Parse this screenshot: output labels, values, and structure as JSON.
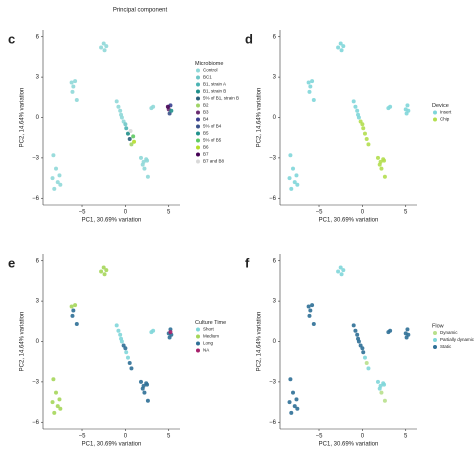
{
  "header": {
    "text": "Principal component"
  },
  "chart_data": [
    {
      "type": "scatter",
      "panel_label": "c",
      "x_label": "PC1, 30.69% variation",
      "y_label": "PC2, 14.64% variation",
      "legend_title": "Microbiome",
      "xlim": [
        -9.5,
        6.3
      ],
      "ylim": [
        -6.5,
        6.5
      ],
      "xticks": [
        {
          "value": -5,
          "label": "−5"
        },
        0,
        5
      ],
      "yticks": [
        6,
        3,
        0,
        {
          "value": -3,
          "label": "−3"
        },
        {
          "value": -6,
          "label": "−6"
        }
      ],
      "series": [
        {
          "name": "Control",
          "color": "#8fd8d8",
          "x": [
            -2.8,
            -2.5,
            -2.2,
            -2.4,
            -6.2,
            -6.0,
            -5.8,
            -6.1,
            -5.6,
            -8.3,
            -8.0,
            -8.4,
            -7.8,
            -8.2,
            -7.5,
            -7.6,
            -1,
            -0.8,
            -0.6,
            -0.5,
            -0.4,
            -0.2,
            1.8,
            2.1,
            2.4,
            2.2,
            2.6,
            2.0,
            2.5,
            3.0,
            3.2
          ],
          "y": [
            5.2,
            5.5,
            5.3,
            5.0,
            2.6,
            2.3,
            2.7,
            1.9,
            1.3,
            -2.8,
            -3.8,
            -4.5,
            -4.8,
            -5.3,
            -5.0,
            -4.3,
            1.2,
            0.8,
            0.5,
            0.2,
            0,
            -0.3,
            -3,
            -3.3,
            -3.1,
            -3.8,
            -4.4,
            -3.5,
            -3.2,
            0.7,
            0.8
          ]
        },
        {
          "name": "BC1",
          "color": "#6ec6c6",
          "x": [
            0
          ],
          "y": [
            -0.5
          ]
        },
        {
          "name": "B1, strain A",
          "color": "#4bb3b3",
          "x": [
            0.1
          ],
          "y": [
            -0.8
          ]
        },
        {
          "name": "B1, strain B",
          "color": "#1f8f8a",
          "x": [
            0.3
          ],
          "y": [
            -1.2
          ]
        },
        {
          "name": "5% of B1, strain B",
          "color": "#2c5f7a",
          "x": [
            0.5
          ],
          "y": [
            -1.6
          ]
        },
        {
          "name": "B2",
          "color": "#a0d468",
          "x": [
            0.7
          ],
          "y": [
            -2
          ]
        },
        {
          "name": "B3",
          "color": "#6a2c70",
          "x": [
            5.0
          ],
          "y": [
            0.6
          ]
        },
        {
          "name": "B4",
          "color": "#3a3f8f",
          "x": [
            5.2
          ],
          "y": [
            0.9
          ]
        },
        {
          "name": "5% of B4",
          "color": "#3b528b",
          "x": [
            5.1
          ],
          "y": [
            0.3
          ]
        },
        {
          "name": "B5",
          "color": "#21918c",
          "x": [
            5.3
          ],
          "y": [
            0.5
          ]
        },
        {
          "name": "5% of B5",
          "color": "#5ec962",
          "x": [
            0.9
          ],
          "y": [
            -1.4
          ]
        },
        {
          "name": "B6",
          "color": "#b5de2b",
          "x": [
            1.0
          ],
          "y": [
            -1.8
          ]
        },
        {
          "name": "B7",
          "color": "#440154",
          "x": [
            4.9
          ],
          "y": [
            0.8
          ]
        },
        {
          "name": "B7 and B8",
          "color": "#d9d9d9",
          "x": [
            0.6
          ],
          "y": [
            -1.0
          ]
        }
      ]
    },
    {
      "type": "scatter",
      "panel_label": "d",
      "x_label": "PC1, 30.69% variation",
      "y_label": "PC2, 14.64% variation",
      "legend_title": "Device",
      "xlim": [
        -9.5,
        6.3
      ],
      "ylim": [
        -6.5,
        6.5
      ],
      "xticks": [
        {
          "value": -5,
          "label": "−5"
        },
        0,
        5
      ],
      "yticks": [
        6,
        3,
        0,
        {
          "value": -3,
          "label": "−3"
        },
        {
          "value": -6,
          "label": "−6"
        }
      ],
      "series": [
        {
          "name": "Insert",
          "color": "#7fd6d9",
          "x": [
            -2.8,
            -2.5,
            -2.2,
            -2.4,
            -6.2,
            -6.0,
            -5.8,
            -6.1,
            -5.6,
            -8.3,
            -8.0,
            -8.4,
            -7.8,
            -8.2,
            -7.5,
            -7.6,
            -1,
            -0.8,
            -0.6,
            -0.5,
            -0.4,
            3.0,
            3.2,
            5.0,
            5.2,
            5.1,
            5.3
          ],
          "y": [
            5.2,
            5.5,
            5.3,
            5.0,
            2.6,
            2.3,
            2.7,
            1.9,
            1.3,
            -2.8,
            -3.8,
            -4.5,
            -4.8,
            -5.3,
            -5.0,
            -4.3,
            1.2,
            0.8,
            0.5,
            0.2,
            0,
            0.7,
            0.8,
            0.6,
            0.9,
            0.3,
            0.5
          ]
        },
        {
          "name": "Chip",
          "color": "#b3de4f",
          "x": [
            -0.2,
            0,
            0.1,
            0.3,
            0.5,
            0.7,
            1.8,
            2.1,
            2.4,
            2.2,
            2.6,
            2.0,
            2.5
          ],
          "y": [
            -0.3,
            -0.5,
            -0.8,
            -1.2,
            -1.6,
            -2,
            -3,
            -3.3,
            -3.1,
            -3.8,
            -4.4,
            -3.5,
            -3.2
          ]
        }
      ]
    },
    {
      "type": "scatter",
      "panel_label": "e",
      "x_label": "PC1, 30.69% variation",
      "y_label": "PC2, 14.64% variation",
      "legend_title": "Culture Time",
      "xlim": [
        -9.5,
        6.3
      ],
      "ylim": [
        -6.5,
        6.5
      ],
      "xticks": [
        {
          "value": -5,
          "label": "−5"
        },
        0,
        5
      ],
      "yticks": [
        6,
        3,
        0,
        {
          "value": -3,
          "label": "−3"
        },
        {
          "value": -6,
          "label": "−6"
        }
      ],
      "series": [
        {
          "name": "Short",
          "color": "#7fd6d9",
          "x": [
            -1,
            -0.8,
            -0.6,
            -0.5,
            -0.4,
            3.0,
            3.2,
            0.1,
            0.3
          ],
          "y": [
            1.2,
            0.8,
            0.5,
            0.2,
            0,
            0.7,
            0.8,
            -0.8,
            -1.2
          ]
        },
        {
          "name": "Medium",
          "color": "#a5d65a",
          "x": [
            -2.8,
            -2.5,
            -2.2,
            -2.4,
            -8.3,
            -8.0,
            -8.4,
            -7.8,
            -8.2,
            -7.5,
            -7.6,
            -6.2,
            -5.8
          ],
          "y": [
            5.2,
            5.5,
            5.3,
            5.0,
            -2.8,
            -3.8,
            -4.5,
            -4.8,
            -5.3,
            -5.0,
            -4.3,
            2.6,
            2.7
          ]
        },
        {
          "name": "Long",
          "color": "#2e6f96",
          "x": [
            -6.0,
            -6.1,
            -5.6,
            -0.2,
            0,
            0.5,
            0.7,
            1.8,
            2.1,
            2.4,
            2.2,
            2.6,
            2.0,
            2.5,
            5.0,
            5.2,
            5.1,
            5.3
          ],
          "y": [
            2.3,
            1.9,
            1.3,
            -0.3,
            -0.5,
            -1.6,
            -2,
            -3,
            -3.3,
            -3.1,
            -3.8,
            -4.4,
            -3.5,
            -3.2,
            0.6,
            0.9,
            0.3,
            0.5
          ]
        },
        {
          "name": "NA",
          "color": "#a6206a",
          "x": [
            5.2
          ],
          "y": [
            0.7
          ]
        }
      ]
    },
    {
      "type": "scatter",
      "panel_label": "f",
      "x_label": "PC1, 30.69% variation",
      "y_label": "PC2, 14.64% variation",
      "legend_title": "Flow",
      "xlim": [
        -9.5,
        6.3
      ],
      "ylim": [
        -6.5,
        6.5
      ],
      "xticks": [
        {
          "value": -5,
          "label": "−5"
        },
        0,
        5
      ],
      "yticks": [
        6,
        3,
        0,
        {
          "value": -3,
          "label": "−3"
        },
        {
          "value": -6,
          "label": "−6"
        }
      ],
      "series": [
        {
          "name": "Dynamic",
          "color": "#b8e08c",
          "x": [
            2.2,
            2.6,
            0.5
          ],
          "y": [
            -3.8,
            -4.4,
            -1.6
          ]
        },
        {
          "name": "Partially dynamic",
          "color": "#7fd6d9",
          "x": [
            -2.8,
            -2.5,
            -2.2,
            -2.4,
            1.8,
            2.1,
            2.4,
            2.0,
            2.5,
            0.3,
            0.7
          ],
          "y": [
            5.2,
            5.5,
            5.3,
            5.0,
            -3,
            -3.3,
            -3.1,
            -3.5,
            -3.2,
            -1.2,
            -2
          ]
        },
        {
          "name": "Static",
          "color": "#2e6f96",
          "x": [
            -6.2,
            -6.0,
            -5.8,
            -6.1,
            -5.6,
            -8.3,
            -8.0,
            -8.4,
            -7.8,
            -8.2,
            -7.5,
            -7.6,
            -1,
            -0.8,
            -0.6,
            -0.5,
            -0.4,
            -0.2,
            0,
            0.1,
            3.0,
            3.2,
            5.0,
            5.2,
            5.1,
            5.3
          ],
          "y": [
            2.6,
            2.3,
            2.7,
            1.9,
            1.3,
            -2.8,
            -3.8,
            -4.5,
            -4.8,
            -5.3,
            -5.0,
            -4.3,
            1.2,
            0.8,
            0.5,
            0.2,
            0,
            -0.3,
            -0.5,
            -0.8,
            0.7,
            0.8,
            0.6,
            0.9,
            0.3,
            0.5
          ]
        }
      ]
    }
  ]
}
